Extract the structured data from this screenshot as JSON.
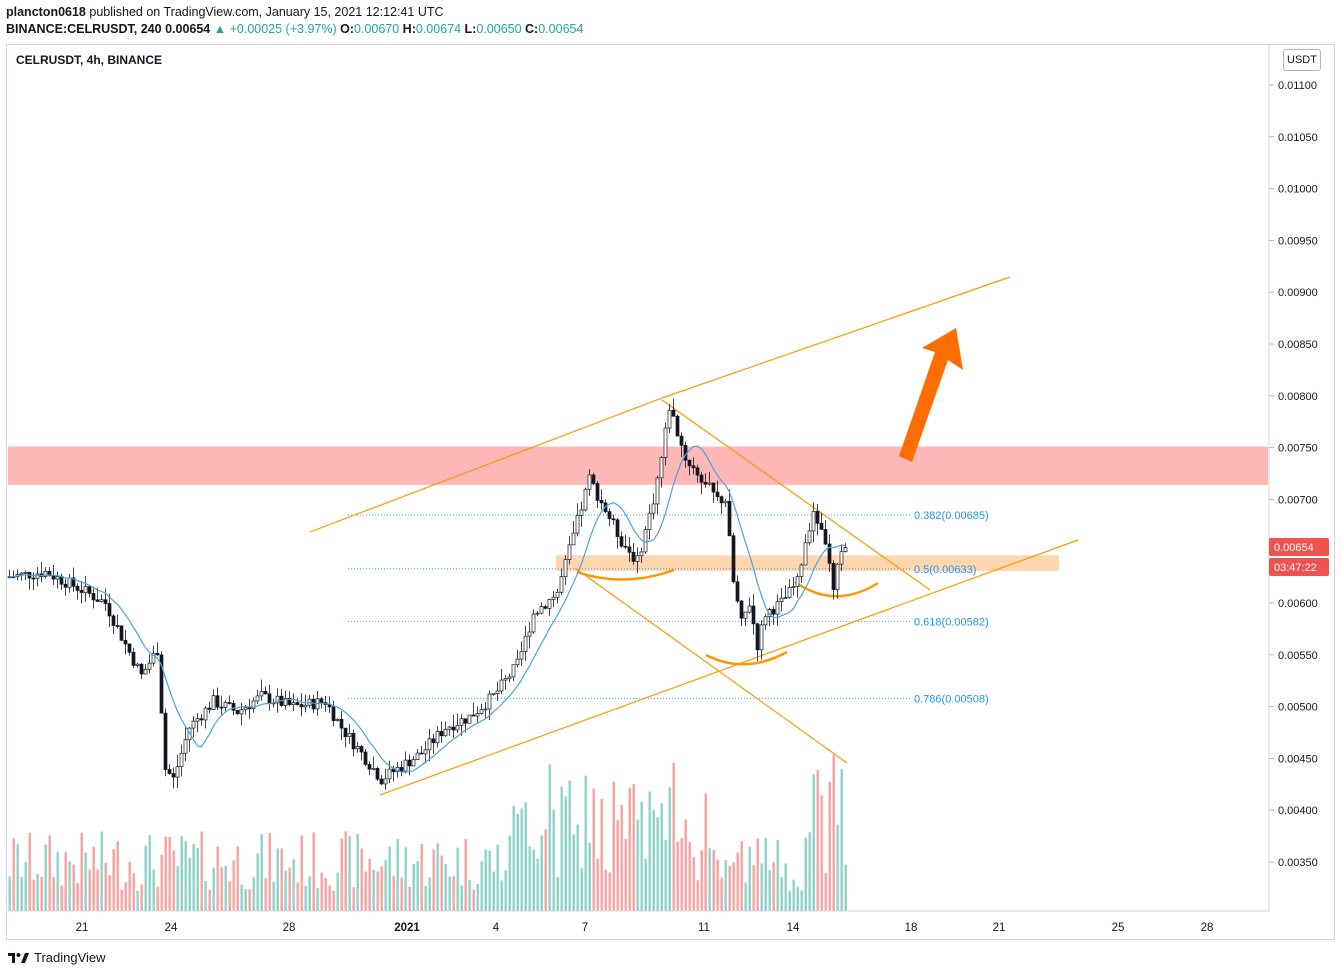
{
  "header": {
    "user": "plancton0618",
    "published": " published on TradingView.com, January 15, 2021 12:12:41 UTC",
    "symbol": "BINANCE:CELRUSDT, 240",
    "last": "0.00654",
    "change": "▲ +0.00025 (+3.97%)",
    "o_label": "O:",
    "o": "0.00670",
    "h_label": "H:",
    "h": "0.00674",
    "l_label": "L:",
    "l": "0.00650",
    "c_label": "C:",
    "c": "0.00654"
  },
  "legend": "CELRUSDT, 4h, BINANCE",
  "currency": "USDT",
  "footer": {
    "brand": "TradingView"
  },
  "colors": {
    "up": "#26a69a",
    "down": "#ef5350",
    "ma": "#4aa3df",
    "orange": "#ff9800",
    "fib": "#2196f3",
    "zone": "#ffb3b3"
  },
  "chart_data": {
    "type": "candlestick",
    "timeframe": "4h",
    "x_ticks": [
      "21",
      "24",
      "28",
      "2021",
      "4",
      "7",
      "11",
      "14",
      "18",
      "21",
      "25",
      "28"
    ],
    "y_ticks": [
      "0.00350",
      "0.00400",
      "0.00450",
      "0.00500",
      "0.00550",
      "0.00600",
      "0.00650",
      "0.00700",
      "0.00750",
      "0.00800",
      "0.00850",
      "0.00900",
      "0.00950",
      "0.01000",
      "0.01050",
      "0.01100"
    ],
    "ylim": [
      0.003,
      0.0112
    ],
    "price_label": "0.00654",
    "countdown": "03:47:22",
    "fib_levels": [
      {
        "label": "0.382(0.00685)",
        "value": 0.00685
      },
      {
        "label": "0.5(0.00633)",
        "value": 0.00633
      },
      {
        "label": "0.618(0.00582)",
        "value": 0.00582
      },
      {
        "label": "0.786(0.00508)",
        "value": 0.00508
      }
    ],
    "resistance_zone": [
      0.00714,
      0.00751
    ],
    "support_zone": [
      0.00631,
      0.00646
    ]
  }
}
